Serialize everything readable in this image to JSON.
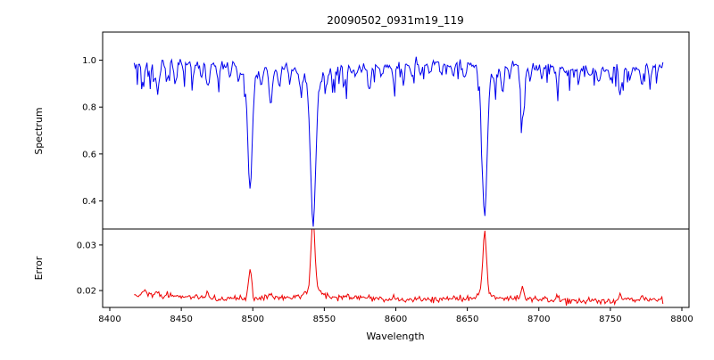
{
  "figure": {
    "title": "20090502_0931m19_119",
    "xlabel": "Wavelength",
    "background": "#ffffff"
  },
  "x_axis": {
    "label": "Wavelength",
    "ticks": [
      8400,
      8450,
      8500,
      8550,
      8600,
      8650,
      8700,
      8750,
      8800
    ],
    "xlim": [
      8395,
      8805
    ]
  },
  "chart_data": [
    {
      "type": "line",
      "name": "spectrum",
      "title": "20090502_0931m19_119",
      "ylabel": "Spectrum",
      "color": "#0000ee",
      "xlim": [
        8395,
        8805
      ],
      "ylim": [
        0.28,
        1.12
      ],
      "yticks": [
        [
          0.4,
          "0.4"
        ],
        [
          0.6,
          "0.6"
        ],
        [
          0.8,
          "0.8"
        ],
        [
          1.0,
          "1.0"
        ]
      ],
      "x_range": [
        8417,
        8787
      ],
      "x_step": 0.75,
      "continuum": 0.975,
      "noise_sigma": 0.01,
      "absorption_lines_format": "[center_angstrom, depth, sigma_angstrom]",
      "absorption_lines": [
        [
          8423.5,
          0.09,
          0.9
        ],
        [
          8428.5,
          0.05,
          0.8
        ],
        [
          8433.5,
          0.13,
          1.0
        ],
        [
          8440,
          0.06,
          0.9
        ],
        [
          8446,
          0.08,
          0.9
        ],
        [
          8452,
          0.05,
          0.8
        ],
        [
          8458.5,
          0.05,
          0.8
        ],
        [
          8464,
          0.07,
          0.9
        ],
        [
          8468.5,
          0.11,
          1.0
        ],
        [
          8476,
          0.08,
          0.9
        ],
        [
          8484,
          0.05,
          0.8
        ],
        [
          8490,
          0.04,
          0.8
        ],
        [
          8498.0,
          0.46,
          1.5
        ],
        [
          8498.0,
          0.06,
          4.5
        ],
        [
          8506,
          0.06,
          0.9
        ],
        [
          8512.5,
          0.16,
          1.1
        ],
        [
          8518.5,
          0.09,
          0.9
        ],
        [
          8526,
          0.05,
          0.8
        ],
        [
          8533,
          0.04,
          0.8
        ],
        [
          8542.1,
          0.6,
          1.8
        ],
        [
          8542.1,
          0.06,
          6.0
        ],
        [
          8551.5,
          0.06,
          0.9
        ],
        [
          8556.5,
          0.05,
          0.8
        ],
        [
          8565,
          0.05,
          0.8
        ],
        [
          8572,
          0.04,
          0.8
        ],
        [
          8582,
          0.09,
          1.0
        ],
        [
          8590,
          0.04,
          0.8
        ],
        [
          8598.5,
          0.07,
          0.9
        ],
        [
          8605,
          0.04,
          0.8
        ],
        [
          8611.5,
          0.05,
          0.8
        ],
        [
          8617.5,
          0.04,
          0.8
        ],
        [
          8624,
          0.05,
          0.8
        ],
        [
          8632,
          0.04,
          0.8
        ],
        [
          8640,
          0.05,
          0.8
        ],
        [
          8648,
          0.07,
          0.9
        ],
        [
          8662.1,
          0.58,
          1.7
        ],
        [
          8662.1,
          0.06,
          5.0
        ],
        [
          8669.5,
          0.06,
          0.9
        ],
        [
          8674.5,
          0.12,
          1.0
        ],
        [
          8679.5,
          0.05,
          0.8
        ],
        [
          8688.6,
          0.24,
          1.2
        ],
        [
          8694,
          0.05,
          0.8
        ],
        [
          8702,
          0.05,
          0.8
        ],
        [
          8713,
          0.08,
          0.9
        ],
        [
          8720,
          0.04,
          0.8
        ],
        [
          8728,
          0.05,
          0.8
        ],
        [
          8736,
          0.04,
          0.8
        ],
        [
          8742,
          0.06,
          0.9
        ],
        [
          8750,
          0.05,
          0.8
        ],
        [
          8757,
          0.11,
          1.0
        ],
        [
          8764,
          0.05,
          0.8
        ],
        [
          8772,
          0.08,
          0.9
        ],
        [
          8778,
          0.05,
          0.8
        ]
      ]
    },
    {
      "type": "line",
      "name": "error",
      "ylabel": "Error",
      "color": "#ee0000",
      "xlim": [
        8395,
        8805
      ],
      "ylim": [
        0.0163,
        0.0335
      ],
      "yticks": [
        [
          0.02,
          "0.02"
        ],
        [
          0.03,
          "0.03"
        ]
      ],
      "x_range": [
        8417,
        8787
      ],
      "x_step": 0.75,
      "baseline": 0.0187,
      "baseline_slope_total": -0.0009,
      "noise_sigma": 0.00035,
      "peaks_format": "[center_angstrom, height, sigma_angstrom]",
      "peaks": [
        [
          8424,
          0.0012,
          1.0
        ],
        [
          8433,
          0.001,
          1.0
        ],
        [
          8468,
          0.0011,
          1.0
        ],
        [
          8498.0,
          0.0062,
          1.1
        ],
        [
          8512.5,
          0.0012,
          1.0
        ],
        [
          8542.1,
          0.0155,
          1.3
        ],
        [
          8542.1,
          0.002,
          4.0
        ],
        [
          8582,
          0.0008,
          0.9
        ],
        [
          8662.1,
          0.0125,
          1.2
        ],
        [
          8662.1,
          0.0015,
          4.0
        ],
        [
          8688.6,
          0.0022,
          1.0
        ],
        [
          8713,
          0.0008,
          0.9
        ],
        [
          8757,
          0.0014,
          0.9
        ],
        [
          8772,
          0.0008,
          0.9
        ]
      ]
    }
  ]
}
